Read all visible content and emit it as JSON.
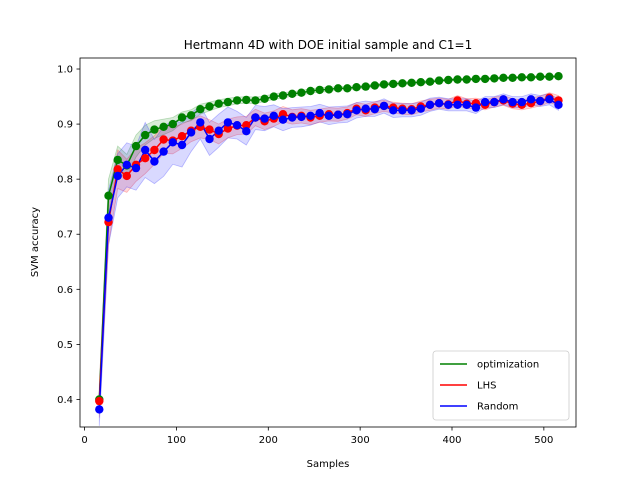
{
  "chart_data": {
    "type": "line",
    "title": "Hertmann 4D with DOE initial sample and C1=1",
    "xlabel": "Samples",
    "ylabel": "SVM accuracy",
    "xlim": [
      -5,
      535
    ],
    "ylim": [
      0.35,
      1.02
    ],
    "x_ticks": [
      0,
      100,
      200,
      300,
      400,
      500
    ],
    "y_ticks": [
      0.4,
      0.5,
      0.6,
      0.7,
      0.8,
      0.9,
      1.0
    ],
    "x_tick_labels": [
      "0",
      "100",
      "200",
      "300",
      "400",
      "500"
    ],
    "y_tick_labels": [
      "0.4",
      "0.5",
      "0.6",
      "0.7",
      "0.8",
      "0.9",
      "1.0"
    ],
    "legend_position": "lower-right",
    "grid": false,
    "x": [
      16,
      26,
      36,
      46,
      56,
      66,
      76,
      86,
      96,
      106,
      116,
      126,
      136,
      146,
      156,
      166,
      176,
      186,
      196,
      206,
      216,
      226,
      236,
      246,
      256,
      266,
      276,
      286,
      296,
      306,
      316,
      326,
      336,
      346,
      356,
      366,
      376,
      386,
      396,
      406,
      416,
      426,
      436,
      446,
      456,
      466,
      476,
      486,
      496,
      506,
      516
    ],
    "series": [
      {
        "name": "optimization",
        "color": "#008000",
        "values": [
          0.4,
          0.77,
          0.835,
          0.825,
          0.86,
          0.88,
          0.89,
          0.895,
          0.9,
          0.912,
          0.916,
          0.927,
          0.932,
          0.937,
          0.94,
          0.943,
          0.944,
          0.943,
          0.946,
          0.95,
          0.952,
          0.955,
          0.957,
          0.96,
          0.962,
          0.963,
          0.965,
          0.965,
          0.967,
          0.968,
          0.97,
          0.972,
          0.973,
          0.974,
          0.975,
          0.976,
          0.977,
          0.979,
          0.98,
          0.981,
          0.981,
          0.982,
          0.982,
          0.983,
          0.984,
          0.984,
          0.985,
          0.985,
          0.986,
          0.986,
          0.987
        ],
        "band": [
          0.02,
          0.03,
          0.025,
          0.02,
          0.02,
          0.018,
          0.016,
          0.014,
          0.012,
          0.01,
          0.01,
          0.009,
          0.008,
          0.007,
          0.007,
          0.006,
          0.006,
          0.006,
          0.005,
          0.005,
          0.005,
          0.004,
          0.004,
          0.004,
          0.004,
          0.004,
          0.003,
          0.003,
          0.003,
          0.003,
          0.003,
          0.003,
          0.003,
          0.003,
          0.003,
          0.003,
          0.003,
          0.002,
          0.002,
          0.002,
          0.002,
          0.002,
          0.002,
          0.002,
          0.002,
          0.002,
          0.002,
          0.002,
          0.002,
          0.002,
          0.002
        ]
      },
      {
        "name": "LHS",
        "color": "#ff0000",
        "values": [
          0.397,
          0.722,
          0.818,
          0.806,
          0.826,
          0.838,
          0.853,
          0.872,
          0.87,
          0.878,
          0.888,
          0.895,
          0.89,
          0.882,
          0.892,
          0.897,
          0.898,
          0.912,
          0.905,
          0.91,
          0.918,
          0.913,
          0.915,
          0.912,
          0.915,
          0.918,
          0.917,
          0.92,
          0.928,
          0.925,
          0.93,
          0.933,
          0.93,
          0.928,
          0.927,
          0.932,
          0.935,
          0.938,
          0.936,
          0.943,
          0.937,
          0.938,
          0.935,
          0.94,
          0.943,
          0.937,
          0.935,
          0.938,
          0.942,
          0.948,
          0.943
        ],
        "band": [
          0.03,
          0.04,
          0.035,
          0.03,
          0.03,
          0.028,
          0.026,
          0.025,
          0.024,
          0.022,
          0.02,
          0.02,
          0.018,
          0.018,
          0.017,
          0.016,
          0.016,
          0.015,
          0.015,
          0.014,
          0.014,
          0.013,
          0.013,
          0.013,
          0.012,
          0.012,
          0.012,
          0.011,
          0.011,
          0.011,
          0.011,
          0.01,
          0.01,
          0.01,
          0.01,
          0.01,
          0.01,
          0.009,
          0.009,
          0.009,
          0.009,
          0.009,
          0.009,
          0.009,
          0.009,
          0.009,
          0.009,
          0.009,
          0.009,
          0.009,
          0.009
        ]
      },
      {
        "name": "Random",
        "color": "#0000ff",
        "values": [
          0.382,
          0.73,
          0.806,
          0.826,
          0.82,
          0.853,
          0.832,
          0.85,
          0.867,
          0.862,
          0.885,
          0.903,
          0.873,
          0.888,
          0.903,
          0.898,
          0.887,
          0.912,
          0.91,
          0.915,
          0.908,
          0.912,
          0.913,
          0.915,
          0.92,
          0.915,
          0.917,
          0.918,
          0.925,
          0.928,
          0.927,
          0.933,
          0.925,
          0.925,
          0.925,
          0.928,
          0.935,
          0.938,
          0.935,
          0.935,
          0.935,
          0.93,
          0.94,
          0.94,
          0.945,
          0.94,
          0.94,
          0.945,
          0.942,
          0.945,
          0.935
        ],
        "band": [
          0.03,
          0.05,
          0.04,
          0.04,
          0.04,
          0.05,
          0.04,
          0.045,
          0.04,
          0.04,
          0.035,
          0.03,
          0.03,
          0.03,
          0.028,
          0.025,
          0.025,
          0.022,
          0.022,
          0.02,
          0.02,
          0.018,
          0.018,
          0.017,
          0.016,
          0.016,
          0.015,
          0.015,
          0.014,
          0.014,
          0.013,
          0.013,
          0.013,
          0.012,
          0.012,
          0.012,
          0.012,
          0.011,
          0.011,
          0.011,
          0.011,
          0.011,
          0.01,
          0.01,
          0.01,
          0.01,
          0.01,
          0.01,
          0.01,
          0.01,
          0.01
        ]
      }
    ]
  }
}
